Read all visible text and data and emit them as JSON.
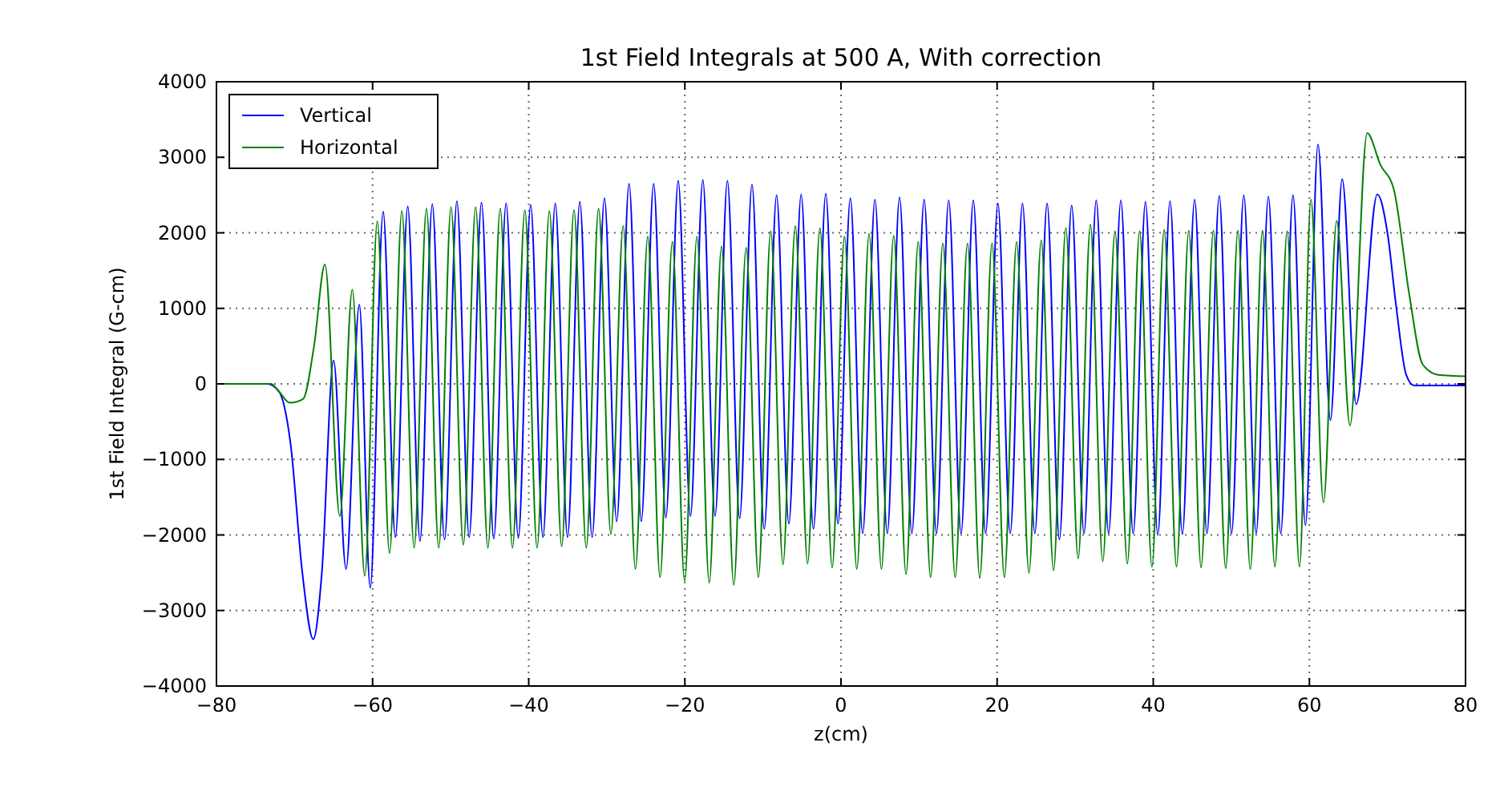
{
  "chart_data": {
    "type": "line",
    "title": "1st Field Integrals at 500 A, With correction",
    "xlabel": "z(cm)",
    "ylabel": "1st Field Integral (G-cm)",
    "xlim": [
      -80,
      80
    ],
    "xticks": [
      -80,
      -60,
      -40,
      -20,
      0,
      20,
      40,
      60,
      80
    ],
    "ylim": [
      -4000,
      4000
    ],
    "yticks": [
      -4000,
      -3000,
      -2000,
      -1000,
      0,
      1000,
      2000,
      3000,
      4000
    ],
    "grid": true,
    "legend": "top left",
    "marker": "none",
    "line_style": "solid",
    "series": [
      {
        "name": "Vertical",
        "color": "#0000ff",
        "x": [
          -80,
          -73.5,
          -72,
          -70.5,
          -69,
          -67.6,
          -66.5,
          -65,
          -63.4,
          -61.7,
          -60.3,
          -58.65,
          -57.08,
          -55.5,
          -53.93,
          -52.35,
          -50.78,
          -49.2,
          -47.63,
          -46.05,
          -44.48,
          -42.9,
          -41.33,
          -39.75,
          -38.18,
          -36.6,
          -35.03,
          -33.45,
          -31.88,
          -30.3,
          -28.73,
          -27.15,
          -25.58,
          -24,
          -22.43,
          -20.85,
          -19.28,
          -17.7,
          -16.13,
          -14.55,
          -12.98,
          -11.4,
          -9.83,
          -8.25,
          -6.68,
          -5.1,
          -3.53,
          -1.95,
          -0.38,
          1.2,
          2.78,
          4.35,
          5.93,
          7.5,
          9.08,
          10.65,
          12.23,
          13.8,
          15.38,
          16.95,
          18.53,
          20.1,
          21.68,
          23.25,
          24.83,
          26.4,
          27.98,
          29.55,
          31.13,
          32.7,
          34.28,
          35.85,
          37.43,
          39,
          40.58,
          42.15,
          43.73,
          45.3,
          46.88,
          48.45,
          50.03,
          51.6,
          53.18,
          54.75,
          56.33,
          57.9,
          59.5,
          61.1,
          62.7,
          64.2,
          66,
          68.7,
          70,
          71.1,
          72.4,
          73.4,
          80
        ],
        "values": [
          0,
          0,
          -100,
          -800,
          -2500,
          -3380,
          -2500,
          310,
          -2450,
          1050,
          -2700,
          2280,
          -2030,
          2350,
          -2080,
          2380,
          -2060,
          2420,
          -2030,
          2400,
          -2050,
          2390,
          -2040,
          2370,
          -2030,
          2390,
          -2030,
          2410,
          -2030,
          2460,
          -1820,
          2650,
          -1820,
          2650,
          -1770,
          2690,
          -1750,
          2700,
          -1750,
          2690,
          -1780,
          2640,
          -1920,
          2500,
          -1850,
          2510,
          -1920,
          2520,
          -1850,
          2460,
          -1980,
          2440,
          -1980,
          2470,
          -1980,
          2440,
          -1980,
          2430,
          -1980,
          2430,
          -1980,
          2390,
          -1980,
          2390,
          -1980,
          2390,
          -2060,
          2360,
          -1980,
          2430,
          -1980,
          2430,
          -1980,
          2410,
          -2000,
          2420,
          -1990,
          2440,
          -1980,
          2490,
          -1980,
          2500,
          -1980,
          2480,
          -1980,
          2500,
          -1870,
          3170,
          -480,
          2710,
          -270,
          2510,
          2000,
          1040,
          120,
          -20,
          -20
        ]
      },
      {
        "name": "Horizontal",
        "color": "#008000",
        "x": [
          -80,
          -73,
          -72,
          -70.6,
          -68.9,
          -67.5,
          -66.1,
          -64.2,
          -62.6,
          -61,
          -59.4,
          -57.83,
          -56.25,
          -54.68,
          -53.1,
          -51.53,
          -49.95,
          -48.38,
          -46.8,
          -45.23,
          -43.65,
          -42.08,
          -40.5,
          -38.93,
          -37.35,
          -35.78,
          -34.2,
          -32.63,
          -31.05,
          -29.48,
          -27.9,
          -26.33,
          -24.75,
          -23.18,
          -21.6,
          -20.03,
          -18.45,
          -16.88,
          -15.3,
          -13.73,
          -12.15,
          -10.58,
          -9,
          -7.43,
          -5.85,
          -4.28,
          -2.7,
          -1.13,
          0.45,
          2.03,
          3.6,
          5.18,
          6.75,
          8.33,
          9.9,
          11.48,
          13.05,
          14.63,
          16.2,
          17.78,
          19.35,
          20.93,
          22.5,
          24.08,
          25.65,
          27.23,
          28.8,
          30.38,
          31.95,
          33.53,
          35.1,
          36.68,
          38.25,
          39.83,
          41.4,
          42.98,
          44.55,
          46.13,
          47.7,
          49.28,
          50.85,
          52.43,
          54,
          55.58,
          57.15,
          58.73,
          60.2,
          61.8,
          63.5,
          65.2,
          67.4,
          69.1,
          70.8,
          72.8,
          74.5,
          76.5,
          80
        ],
        "values": [
          0,
          0,
          -100,
          -250,
          -200,
          500,
          1580,
          -1750,
          1250,
          -2540,
          2150,
          -2240,
          2290,
          -2170,
          2320,
          -2170,
          2340,
          -2130,
          2340,
          -2170,
          2320,
          -2170,
          2300,
          -2170,
          2290,
          -2150,
          2300,
          -2170,
          2320,
          -1990,
          2090,
          -2450,
          1950,
          -2560,
          1880,
          -2610,
          1950,
          -2630,
          1820,
          -2660,
          1800,
          -2560,
          2020,
          -2390,
          2090,
          -2380,
          2060,
          -2430,
          1950,
          -2450,
          1990,
          -2450,
          1960,
          -2520,
          1880,
          -2560,
          1860,
          -2560,
          1860,
          -2570,
          1860,
          -2560,
          1880,
          -2500,
          1900,
          -2470,
          2060,
          -2310,
          2110,
          -2350,
          2020,
          -2380,
          2020,
          -2420,
          2040,
          -2420,
          2030,
          -2430,
          2030,
          -2440,
          2030,
          -2450,
          2030,
          -2420,
          2020,
          -2420,
          2440,
          -1570,
          2160,
          -550,
          3320,
          2900,
          2580,
          1180,
          260,
          120,
          100
        ]
      }
    ]
  }
}
